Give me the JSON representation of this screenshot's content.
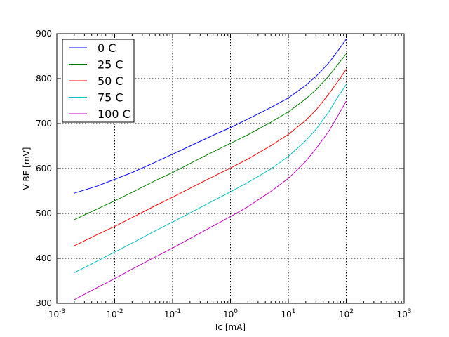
{
  "chart_data": {
    "type": "line",
    "title": "",
    "xlabel": "Ic [mA]",
    "ylabel": "V BE [mV]",
    "x_scale": "log",
    "xlim": [
      0.001,
      1000
    ],
    "ylim": [
      300,
      900
    ],
    "grid": true,
    "legend_position": "upper left",
    "x_ticks": [
      {
        "value": 0.001,
        "base": "10",
        "exp": "-3"
      },
      {
        "value": 0.01,
        "base": "10",
        "exp": "-2"
      },
      {
        "value": 0.1,
        "base": "10",
        "exp": "-1"
      },
      {
        "value": 1,
        "base": "10",
        "exp": "0"
      },
      {
        "value": 10,
        "base": "10",
        "exp": "1"
      },
      {
        "value": 100,
        "base": "10",
        "exp": "2"
      },
      {
        "value": 1000,
        "base": "10",
        "exp": "3"
      }
    ],
    "y_ticks": [
      {
        "value": 300,
        "label": "300"
      },
      {
        "value": 400,
        "label": "400"
      },
      {
        "value": 500,
        "label": "500"
      },
      {
        "value": 600,
        "label": "600"
      },
      {
        "value": 700,
        "label": "700"
      },
      {
        "value": 800,
        "label": "800"
      },
      {
        "value": 900,
        "label": "900"
      }
    ],
    "x": [
      0.002,
      0.005,
      0.01,
      0.02,
      0.05,
      0.1,
      0.2,
      0.5,
      1,
      2,
      5,
      10,
      20,
      30,
      50,
      70,
      100
    ],
    "series": [
      {
        "name": "0 C",
        "color": "#0000ff",
        "values": [
          545,
          561,
          576,
          591,
          614,
          632,
          650,
          674,
          691,
          710,
          736,
          757,
          785,
          805,
          835,
          860,
          888
        ]
      },
      {
        "name": "25 C",
        "color": "#008000",
        "values": [
          486,
          510,
          528,
          547,
          573,
          591,
          611,
          637,
          656,
          675,
          703,
          726,
          755,
          775,
          806,
          830,
          855
        ]
      },
      {
        "name": "50 C",
        "color": "#ff0000",
        "values": [
          428,
          453,
          471,
          491,
          517,
          536,
          556,
          582,
          601,
          621,
          651,
          676,
          707,
          730,
          766,
          792,
          821
        ]
      },
      {
        "name": "75 C",
        "color": "#00bfbf",
        "values": [
          368,
          394,
          414,
          434,
          461,
          481,
          501,
          528,
          548,
          569,
          599,
          627,
          662,
          687,
          726,
          757,
          787
        ]
      },
      {
        "name": "100 C",
        "color": "#bf00bf",
        "values": [
          308,
          335,
          355,
          376,
          403,
          423,
          444,
          472,
          493,
          515,
          549,
          578,
          616,
          644,
          683,
          715,
          750
        ]
      }
    ]
  }
}
